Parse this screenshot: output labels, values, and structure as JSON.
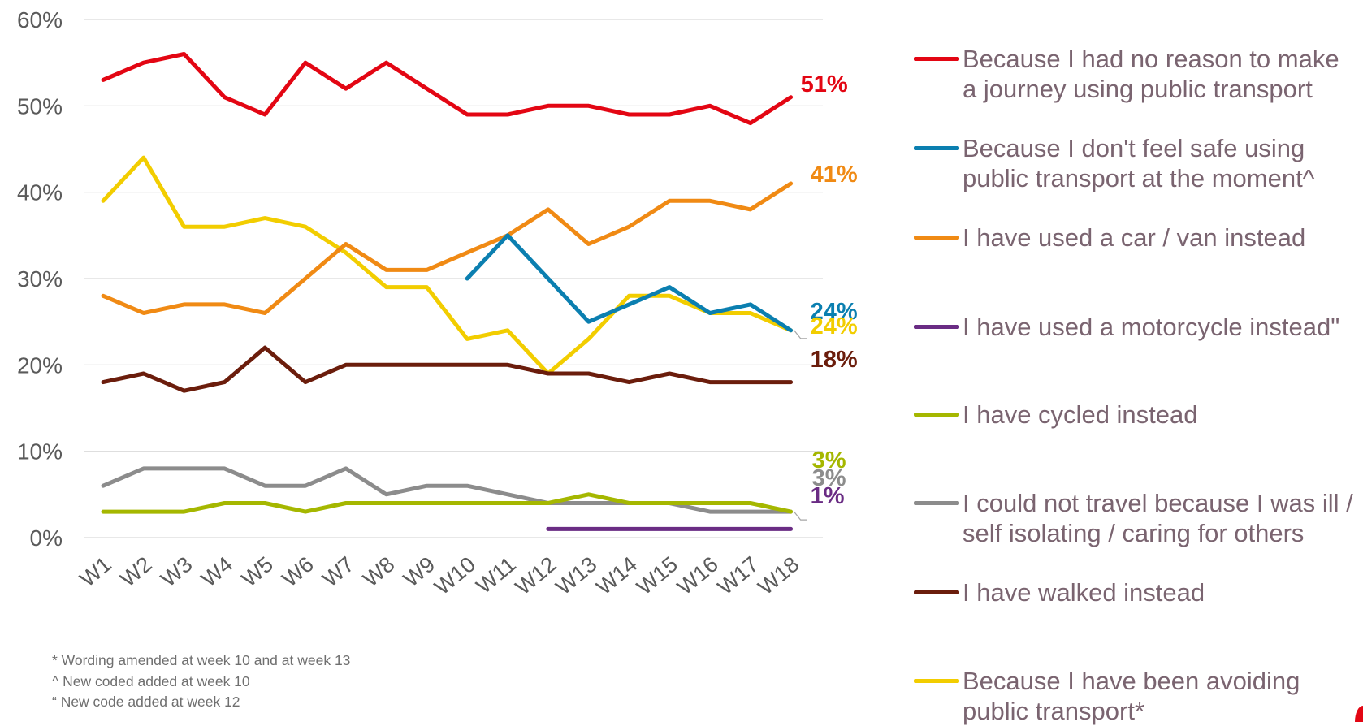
{
  "chart_data": {
    "type": "line",
    "categories": [
      "W1",
      "W2",
      "W3",
      "W4",
      "W5",
      "W6",
      "W7",
      "W8",
      "W9",
      "W10",
      "W11",
      "W12",
      "W13",
      "W14",
      "W15",
      "W16",
      "W17",
      "W18"
    ],
    "ylim": [
      0,
      60
    ],
    "yticks": [
      "0%",
      "10%",
      "20%",
      "30%",
      "40%",
      "50%",
      "60%"
    ],
    "grid": true,
    "legend_position": "right",
    "series": [
      {
        "name": "Because I had no reason to make a journey using public transport",
        "color": "#e30613",
        "values": [
          53,
          55,
          56,
          51,
          49,
          55,
          52,
          55,
          52,
          49,
          49,
          50,
          50,
          49,
          49,
          50,
          48,
          51
        ],
        "end_label": "51%"
      },
      {
        "name": "Because I don't feel safe using public transport at the moment^",
        "color": "#0b7fb0",
        "values": [
          null,
          null,
          null,
          null,
          null,
          null,
          null,
          null,
          null,
          30,
          35,
          30,
          25,
          27,
          29,
          26,
          27,
          24
        ],
        "end_label": "24%"
      },
      {
        "name": "I have used a car / van instead",
        "color": "#f08a14",
        "values": [
          28,
          26,
          27,
          27,
          26,
          30,
          34,
          31,
          31,
          33,
          35,
          38,
          34,
          36,
          39,
          39,
          38,
          41
        ],
        "end_label": "41%"
      },
      {
        "name": "I have used a motorcycle instead\"",
        "color": "#6a2c84",
        "values": [
          null,
          null,
          null,
          null,
          null,
          null,
          null,
          null,
          null,
          null,
          null,
          1,
          1,
          1,
          1,
          1,
          1,
          1
        ],
        "end_label": "1%"
      },
      {
        "name": "I have cycled instead",
        "color": "#a5b700",
        "values": [
          3,
          3,
          3,
          4,
          4,
          3,
          4,
          4,
          4,
          4,
          4,
          4,
          5,
          4,
          4,
          4,
          4,
          3
        ],
        "end_label": "3%"
      },
      {
        "name": "I could not travel because I was ill / self isolating / caring for others",
        "color": "#8c8c8c",
        "values": [
          6,
          8,
          8,
          8,
          6,
          6,
          8,
          5,
          6,
          6,
          5,
          4,
          4,
          4,
          4,
          3,
          3,
          3
        ],
        "end_label": "3%"
      },
      {
        "name": "I have walked instead",
        "color": "#6b1d0c",
        "values": [
          18,
          19,
          17,
          18,
          22,
          18,
          20,
          20,
          20,
          20,
          20,
          19,
          19,
          18,
          19,
          18,
          18,
          18
        ],
        "end_label": "18%"
      },
      {
        "name": "Because I have been avoiding public transport*",
        "color": "#f2cd00",
        "values": [
          39,
          44,
          36,
          36,
          37,
          36,
          33,
          29,
          29,
          23,
          24,
          19,
          23,
          28,
          28,
          26,
          26,
          24
        ],
        "end_label": "24%"
      }
    ]
  },
  "notes": [
    "* Wording amended at week 10 and at week 13",
    "^ New coded added at week 10",
    "“ New code added at week 12"
  ]
}
